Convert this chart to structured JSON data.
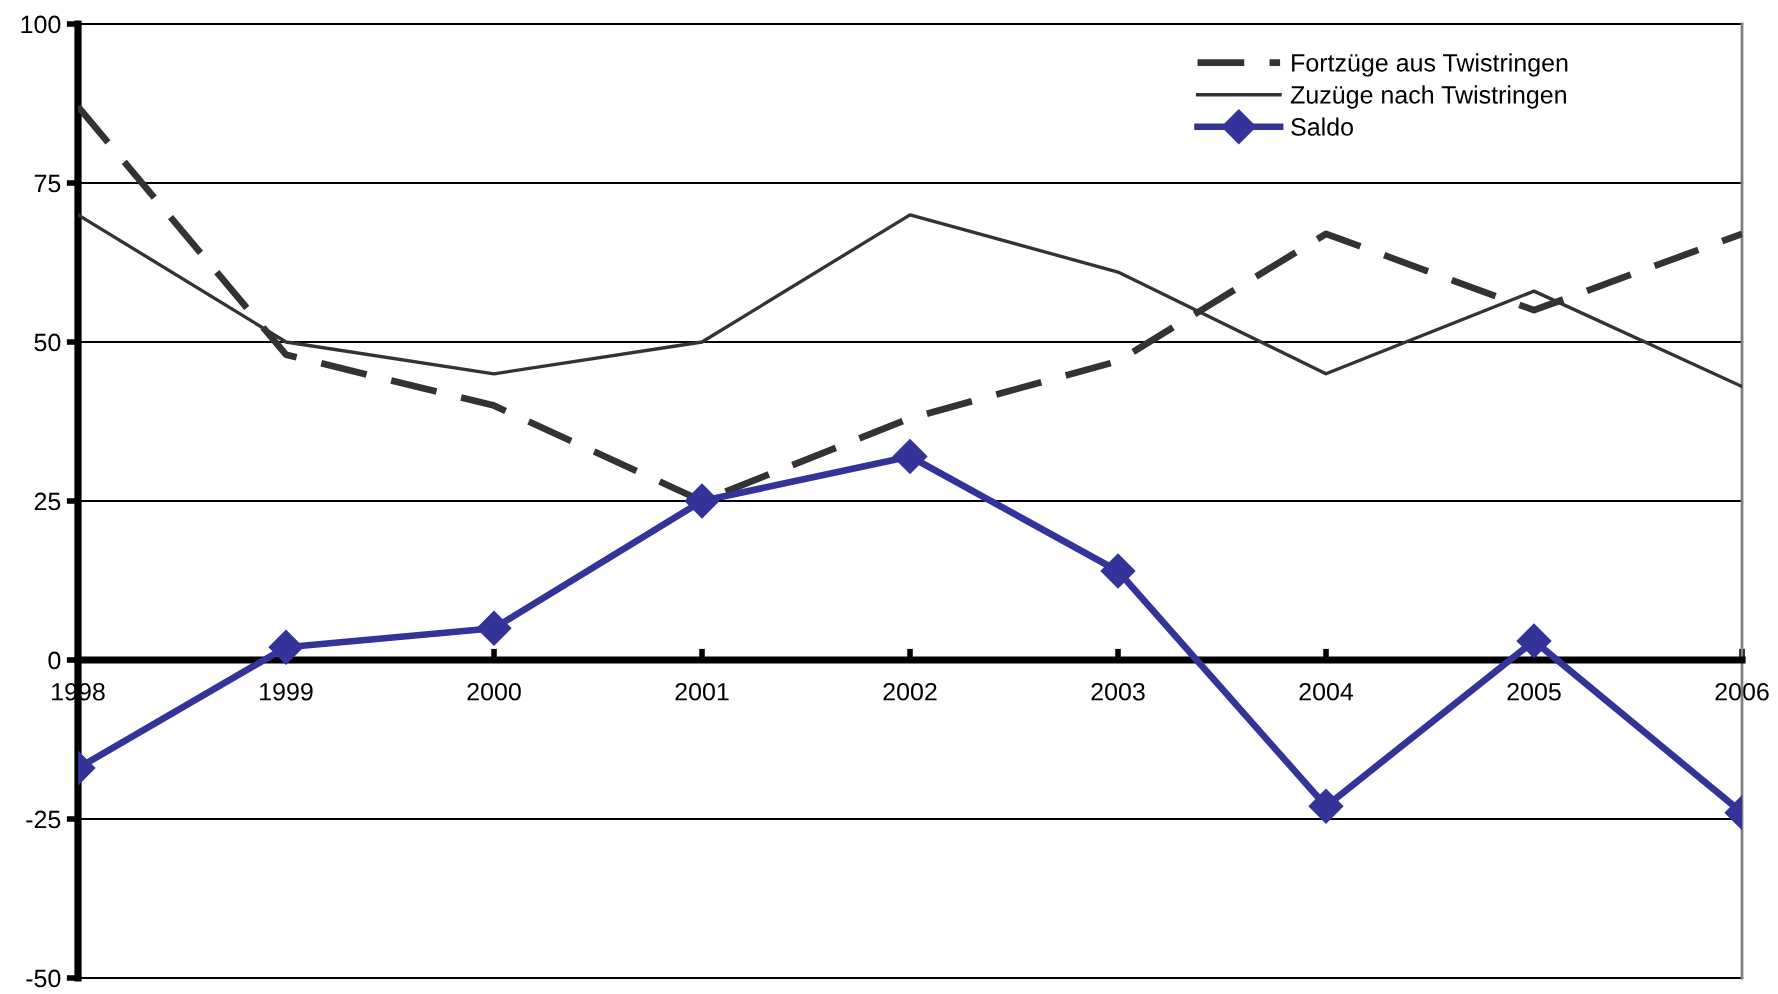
{
  "chart_data": {
    "type": "line",
    "categories": [
      "1998",
      "1999",
      "2000",
      "2001",
      "2002",
      "2003",
      "2004",
      "2005",
      "2006"
    ],
    "ylim": [
      -50,
      100
    ],
    "yticks": [
      -50,
      -25,
      0,
      25,
      50,
      75,
      100
    ],
    "grid": "y",
    "legend": "top right",
    "series": [
      {
        "name": "Fortzüge aus Twistringen",
        "color": "#333333",
        "line_style": "dashed",
        "marker": "none",
        "values": [
          87,
          48,
          40,
          25,
          38,
          47,
          67,
          55,
          67
        ]
      },
      {
        "name": "Zuzüge nach Twistringen",
        "color": "#333333",
        "line_style": "solid",
        "marker": "none",
        "values": [
          70,
          50,
          45,
          50,
          70,
          61,
          45,
          58,
          43
        ]
      },
      {
        "name": "Saldo",
        "color": "#333399",
        "line_style": "solid",
        "marker": "diamond",
        "values": [
          -17,
          2,
          5,
          25,
          32,
          14,
          -23,
          3,
          -24
        ]
      }
    ]
  }
}
